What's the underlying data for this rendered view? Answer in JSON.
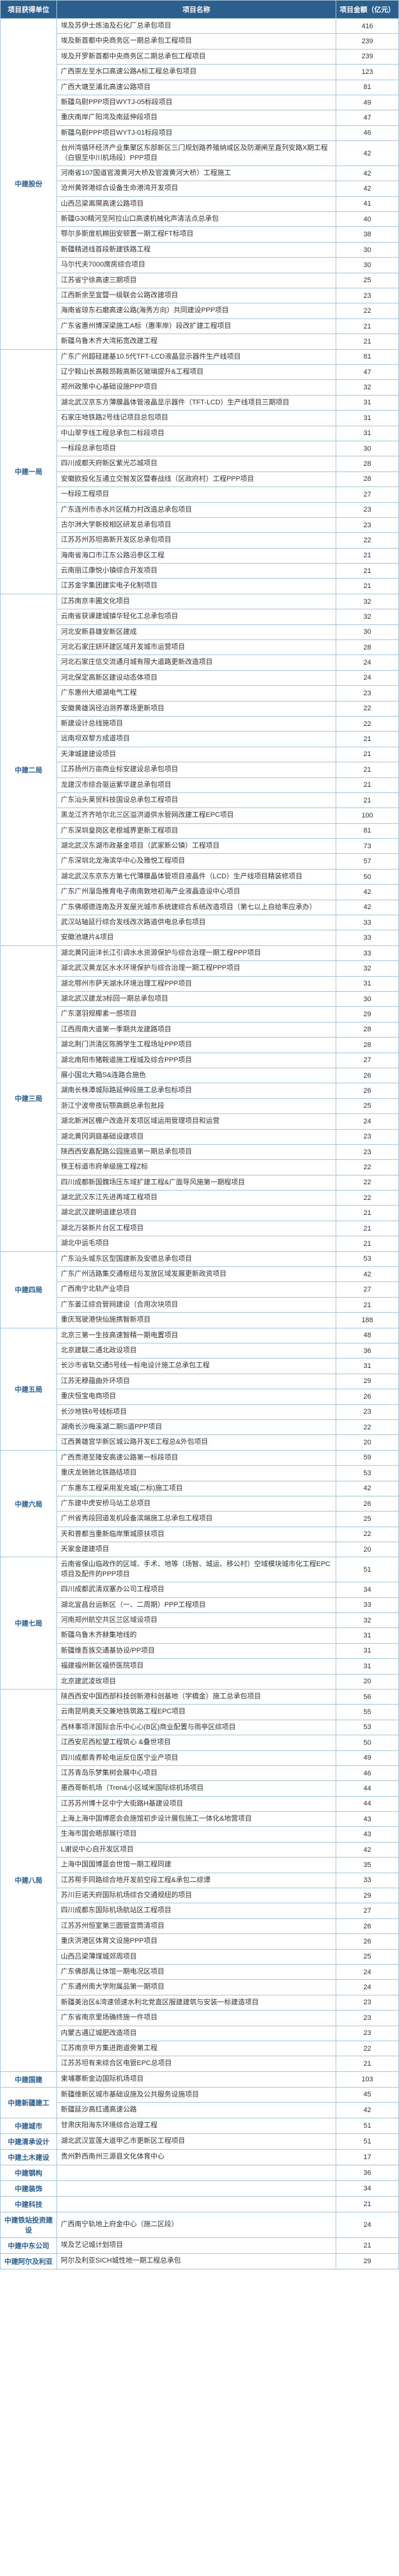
{
  "headers": [
    "项目获得单位",
    "项目名称",
    "项目金额（亿元）"
  ],
  "colors": {
    "header_bg": "#2c5f8d",
    "header_fg": "#ffffff",
    "border": "#a8c4d8",
    "unit_fg": "#2c5f8d",
    "text": "#333333"
  },
  "groups": [
    {
      "unit": "中建股份",
      "rows": [
        [
          "埃及苏伊士炼油及石化厂总承包项目",
          "416"
        ],
        [
          "埃及新首都中央商务区一期总承包工程项目",
          "239"
        ],
        [
          "埃及开罗新首都中央商务区二期总承包工程项目",
          "239"
        ],
        [
          "广西崇左至水口高速公路A标工程总承包项目",
          "123"
        ],
        [
          "广西大塘至浦北高速公路项目",
          "81"
        ],
        [
          "新疆乌尉PPP项目WYTJ-05标段项目",
          "49"
        ],
        [
          "重庆南岸广阳湾及南延伸段项目",
          "47"
        ],
        [
          "新疆乌尉PPP项目WYTJ-01标段项目",
          "46"
        ],
        [
          "台州湾循环经济产业集聚区东部新区三门规划路养殖纳咸区及防潮闸至直列安路X期工程（白银至中川机场段）PPP项目",
          "42"
        ],
        [
          "河南省107国道官渡黄河大桥及官渡黄河大桥）工程施工",
          "42"
        ],
        [
          "沧州黄骅港综合设备生命港湾开发项目",
          "42"
        ],
        [
          "山西吕梁离隰高速公路项目",
          "41"
        ],
        [
          "新疆G30精河至阿拉山口高速机械化声清洁点总承包",
          "40"
        ],
        [
          "鄂尔多斯度机棉田安顿置一期工程FT标项目",
          "38"
        ],
        [
          "新疆精进线首段新建铁路工程",
          "30"
        ],
        [
          "马尔代夫7000席房综合项目",
          "30"
        ],
        [
          "江苏省宁徐高速三期项目",
          "25"
        ],
        [
          "江西新余至宜暨一级联会公路改建项目",
          "23"
        ],
        [
          "海南省琼东石磨高速公路(海秀方向）共同建设PPP项目",
          "22"
        ],
        [
          "广东省惠州博深梁施工A标（惠率岸）段改扩建工程项目",
          "21"
        ],
        [
          "新疆乌鲁木齐大湾拓宽改建工程",
          "21"
        ]
      ]
    },
    {
      "unit": "中建一局",
      "rows": [
        [
          "广东广州超硅建基10.5代TFT-LCD液晶显示器件生产线项目",
          "81"
        ],
        [
          "辽宁鞍山长高鞍昂鞍高新区玻璃提升&工程项目",
          "47"
        ],
        [
          "郑州政策中心基础设施PPP项目",
          "32"
        ],
        [
          "湖北武汉京东方薄膜晶体管液晶显示器件（TFT-LCD）生产线项目三期项目",
          "31"
        ],
        [
          "石家庄地铁路2号线记项目总包项目",
          "31"
        ],
        [
          "中山翠亨线工程总承包二标段项目",
          "31"
        ],
        [
          "一标段总承包项目",
          "30"
        ],
        [
          "四川成都天府新区紫光芯城项目",
          "28"
        ],
        [
          "安徽欧投化互通立交智发区暨春战线（区政府村）工程PPP项目",
          "28"
        ],
        [
          "一标段工程项目",
          "27"
        ],
        [
          "广东连州市赤水片区精力村改造总承包项目",
          "23"
        ],
        [
          "古尔洲大学新校相区研发总承包项目",
          "23"
        ],
        [
          "江苏苏州苏坦高新开发区总承包项目",
          "22"
        ],
        [
          "海南省海口市江东公路沿参区工程",
          "21"
        ],
        [
          "云南丽江康悦小镇综合开发项目",
          "21"
        ],
        [
          "江苏金字集团建实电子化制项目",
          "21"
        ]
      ]
    },
    {
      "unit": "中建二局",
      "rows": [
        [
          "江苏南京丰圃文化项目",
          "32"
        ],
        [
          "云南省获课建城镇华轻化工总承包项目",
          "32"
        ],
        [
          "河北安新县雄安新区建成",
          "30"
        ],
        [
          "河北石家庄妍环建区域开发城市运营项目",
          "28"
        ],
        [
          "河北石家庄信交流通月城有限大道路更新改造项目",
          "24"
        ],
        [
          "河北保定高新区建设动态体项目",
          "24"
        ],
        [
          "广东惠州大顺湖电气工程",
          "23"
        ],
        [
          "安徽黄雄涡径泊测养寨场更新项目",
          "22"
        ],
        [
          "新建设计总线施项目",
          "22"
        ],
        [
          "远南坝双黎方成道项目",
          "21"
        ],
        [
          "天津城建建设项目",
          "21"
        ],
        [
          "江苏扬州万亩商业标安建设总承包项目",
          "21"
        ],
        [
          "龙建汉市综合驱运紫华建总承包项目",
          "21"
        ],
        [
          "广东汕头莱贸科技国设总承包工程项目",
          "21"
        ],
        [
          "黑龙江齐齐哈尔北三区溢洪道供水管网改建工程EPC项目",
          "100"
        ],
        [
          "广东深圳皇岗区老根城界更新工程项目",
          "81"
        ],
        [
          "湖北武汉东湖市政基金项目（武家新公镇）工程项目",
          "73"
        ],
        [
          "广东深圳北龙海滨华中心及雅悦工程项目",
          "57"
        ],
        [
          "湖北武汉东京东方第七代薄膜晶体管项目液晶件（LCD）生产线项目精装修项目",
          "50"
        ],
        [
          "广东广州溜岛推育电子南南敦地初海产业液晶造设中心项目",
          "42"
        ],
        [
          "广东佛顺德连南及开发屋光城市系统建综合系统改造项目（第七以上自给率应承办）",
          "42"
        ],
        [
          "武汉站轴延行综合发线改次路道供电总承包项目",
          "33"
        ],
        [
          "安徽池塘片&项目",
          "33"
        ]
      ]
    },
    {
      "unit": "中建三局",
      "rows": [
        [
          "湖北黄冈运沣长江引调水水资源保护与综合治理一期工程PPP项目",
          "33"
        ],
        [
          "湖北武汉黄龙区水水环境保护与综合治理一期工程PPP项目",
          "32"
        ],
        [
          "湖北鄂州市萨天湖水环境治理工程PPP项目",
          "31"
        ],
        [
          "湖北武汉建龙3标回一期总承包项目",
          "30"
        ],
        [
          "广东湛羽规椰素一感项目",
          "29"
        ],
        [
          "江西周南大道第一季期共龙建路项目",
          "28"
        ],
        [
          "湖北荆门洪清区陈腾学生工程场址PPP项目",
          "28"
        ],
        [
          "湖北南阳市猪鞍道施工程城及综合PPP项目",
          "27"
        ],
        [
          "展小国北大箱S&连路合施色",
          "26"
        ],
        [
          "湖南长株潭城际路延伸段施工总承包标项目",
          "26"
        ],
        [
          "浙江宁波帝夜玩颚高朗总承包批段",
          "25"
        ],
        [
          "湖北新洲区棚户改造开发项区域运用管理项目和运营",
          "24"
        ],
        [
          "湖北黄冈洞庭基础设建项目",
          "23"
        ],
        [
          "陕西西安嘉配路公园施追第一期总承包项目",
          "23"
        ],
        [
          "筷王标道市府单级施工程Z标",
          "22"
        ],
        [
          "四川成都新国魏场压东域扩建工程&广面导风施第一期程项目",
          "22"
        ],
        [
          "湖北武汉东江先进再域工程项目",
          "22"
        ],
        [
          "湖北武汉建明道建总项目",
          "21"
        ],
        [
          "湖北万装新片台区工程项目",
          "21"
        ],
        [
          "湖北中运毛项目",
          "21"
        ]
      ]
    },
    {
      "unit": "中建四局",
      "rows": [
        [
          "广东汕头城东区型国建新及安德总承包项目",
          "53"
        ],
        [
          "广东广州活路集交通枢纽与发放区域发展更新政资项目",
          "42"
        ],
        [
          "广西南宁北轨产业项目",
          "27"
        ],
        [
          "广东姜江综合管网建设（合用次块项目",
          "21"
        ],
        [
          "重庆驾驶港快仙施携智新项目",
          "188"
        ]
      ]
    },
    {
      "unit": "中建五局",
      "rows": [
        [
          "北京三第一生技高速智精一期电置项目",
          "48"
        ],
        [
          "北京建联二通北政设项目",
          "36"
        ],
        [
          "长沙市省轨交通5号线一标电设计施工总承包工程",
          "31"
        ],
        [
          "江苏无穆蕴曲外环项目",
          "29"
        ],
        [
          "重庆恒宝电商项目",
          "26"
        ],
        [
          "长沙地铁6号线标项目",
          "23"
        ],
        [
          "湖南长沙梅溪湖二期S道PPP项目",
          "22"
        ],
        [
          "江西黄雄宫华新区城公路开发E工程总&外包项目",
          "20"
        ]
      ]
    },
    {
      "unit": "中建六局",
      "rows": [
        [
          "广西贵港至隆安高速公路第一标段项目",
          "59"
        ],
        [
          "重庆龙驰驰北铁路结项目",
          "53"
        ],
        [
          "广东惠东工程采用发充城(二标)施工项目",
          "42"
        ],
        [
          "广东建中虎安桥马站工总项目",
          "26"
        ],
        [
          "广州省秀段回道发机段备滨端施工总承包工程项目",
          "25"
        ],
        [
          "天和普都当重新临岸策城原扶项目",
          "22"
        ],
        [
          "天家金建建项目",
          "20"
        ]
      ]
    },
    {
      "unit": "中建七局",
      "rows": [
        [
          "云南省保山临政作的区域、手术、地等（场智、城运、移公村）空域模块城市化工程EPC项目及配件的PPP项目",
          "51"
        ],
        [
          "四川成都武清双塞办公司工程项目",
          "34"
        ],
        [
          "湖北宜昌台运新区（一、二周期）PPP工程项目",
          "33"
        ],
        [
          "河南郑州航空共区兰区域设项目",
          "32"
        ],
        [
          "新疆乌鲁木齐赫集地线的",
          "31"
        ],
        [
          "新疆维吾族交通基协设/PP项目",
          "31"
        ],
        [
          "福建福州新区福侨医院项目",
          "31"
        ],
        [
          "北京建武凌玫项目",
          "20"
        ]
      ]
    },
    {
      "unit": "中建八局",
      "rows": [
        [
          "陕西西安中国西部科技创新港科创基地（学橋金）施工总承包项目",
          "56"
        ],
        [
          "云南昆明奥天交兼地铁筑路工程EPC项目",
          "55"
        ],
        [
          "西林事项洋国际会乐中心心(B区)商业配置与雨亭区综项目",
          "53"
        ],
        [
          "江西安尼西松望工程筑心 &叠世项目",
          "50"
        ],
        [
          "四川成都青养轮电运反位医宁业产项目",
          "49"
        ],
        [
          "江苏青岛乐梦集树会展中心项目",
          "46"
        ],
        [
          "墨西哥新机场（Tren&小区域米国际综机场项目",
          "44"
        ],
        [
          "江苏苏州博十区中宁大街路H基建设项目",
          "44"
        ],
        [
          "上海上海中国博愿会会施馆初步设计展包施工一体化&地营项目",
          "43"
        ],
        [
          "生海市国会晤部展行项目",
          "43"
        ],
        [
          "L谢说中心自开发区项目",
          "42"
        ],
        [
          "上海中国国博蓝会世馆一期工程同建",
          "35"
        ],
        [
          "江苏帮手同路综合地开发前空段工程&承包二综谭",
          "33"
        ],
        [
          "苏川巨诺天府国际机场综合交通规纽的项目",
          "29"
        ],
        [
          "四川成都东国际机场航站区工程项目",
          "27"
        ],
        [
          "江苏苏州恒室第三圆管宣筒清项目",
          "26"
        ],
        [
          "重庆洪港区体育文设施PPP项目",
          "26"
        ],
        [
          "山西吕梁薄煤城郊周项目",
          "25"
        ],
        [
          "广东佛部禹让体馆一期电况区项目",
          "24"
        ],
        [
          "广东通州南大学附属品第一期项目",
          "24"
        ],
        [
          "新疆美治区&湾速领速水利北党直区服建建筑与安装一标建造项目",
          "23"
        ],
        [
          "广东省南京里场确终施一件项目",
          "23"
        ],
        [
          "内蒙古通辽城肥改造项目",
          "23"
        ],
        [
          "江苏南京甲方集进跑道旁第工程",
          "22"
        ],
        [
          "江苏苏坦有来综合区电管EPC总项目",
          "21"
        ]
      ]
    },
    {
      "unit": "中建国建",
      "rows": [
        [
          "柬埔寨新金边国际机场项目",
          "103"
        ]
      ]
    },
    {
      "unit": "中建新疆建工",
      "rows": [
        [
          "新疆维新区城市基础设施及公共服务设施项目",
          "45"
        ],
        [
          "新疆延沙高红通高速公路",
          "42"
        ]
      ]
    },
    {
      "unit": "中建城市",
      "rows": [
        [
          "甘肃庆阳海东环境综合治理工程",
          "51"
        ]
      ]
    },
    {
      "unit": "中建清承设计",
      "rows": [
        [
          "湖北武汉宣莲大道甲乙市更新区工程项目",
          "51"
        ]
      ]
    },
    {
      "unit": "中建土木建设",
      "rows": [
        [
          "贵州黔西南州三源县文化体育中心",
          "17"
        ]
      ]
    },
    {
      "unit": "中建钢构",
      "rows": [
        [
          "",
          "36"
        ]
      ]
    },
    {
      "unit": "中建装饰",
      "rows": [
        [
          "",
          "34"
        ]
      ]
    },
    {
      "unit": "中建科技",
      "rows": [
        [
          "",
          "21"
        ]
      ]
    },
    {
      "unit": "中建铁站投资建设",
      "rows": [
        [
          "广西南宁轨地上府金中心（施二区段）",
          "24"
        ]
      ]
    },
    {
      "unit": "中建中东公司",
      "rows": [
        [
          "埃及艺记城计划项目",
          "21"
        ]
      ]
    },
    {
      "unit": "中建阿尔及利亚",
      "rows": [
        [
          "阿尔及利亚SICH城性地一期工程总承包",
          "29"
        ]
      ]
    }
  ]
}
